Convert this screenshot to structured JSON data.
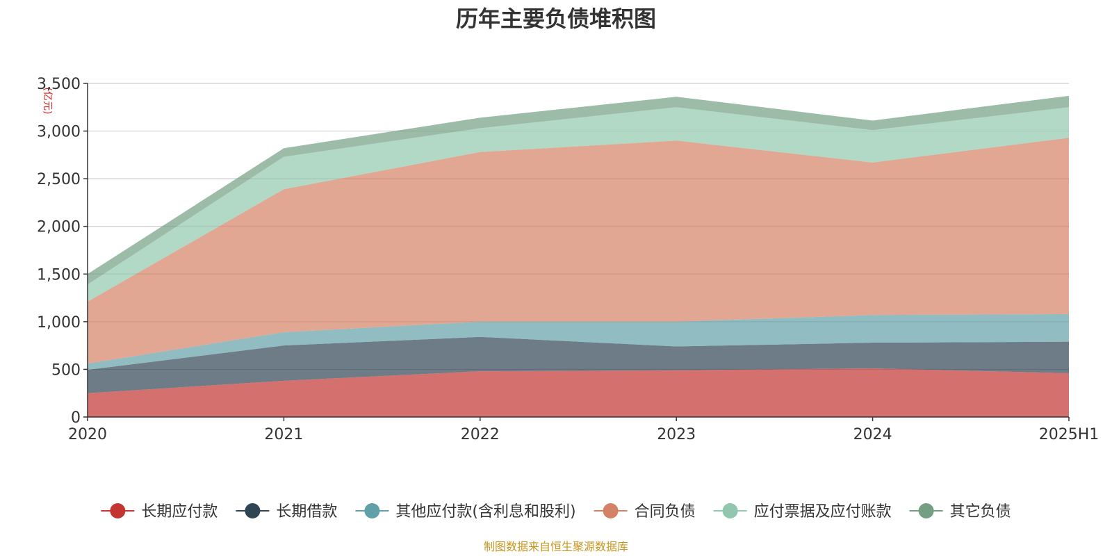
{
  "chart_data": {
    "type": "area",
    "stacked": true,
    "title": "历年主要负债堆积图",
    "unit": "(亿元)",
    "categories": [
      "2020",
      "2021",
      "2022",
      "2023",
      "2024",
      "2025H1"
    ],
    "ylim": [
      0,
      3500
    ],
    "yticks": [
      0,
      500,
      1000,
      1500,
      2000,
      2500,
      3000,
      3500
    ],
    "ytick_labels": [
      "0",
      "500",
      "1,000",
      "1,500",
      "2,000",
      "2,500",
      "3,000",
      "3,500"
    ],
    "grid": true,
    "legend_position": "bottom",
    "series": [
      {
        "name": "长期应付款",
        "values": [
          250,
          380,
          480,
          490,
          510,
          460
        ],
        "color": "#c23531",
        "opacity": 0.7
      },
      {
        "name": "长期借款",
        "values": [
          245,
          370,
          360,
          250,
          270,
          330
        ],
        "color": "#2f4554",
        "opacity": 0.7
      },
      {
        "name": "其他应付款(含利息和股利)",
        "values": [
          65,
          140,
          160,
          260,
          290,
          290
        ],
        "color": "#61a0a8",
        "opacity": 0.7
      },
      {
        "name": "合同负债",
        "values": [
          650,
          1500,
          1780,
          1900,
          1600,
          1850
        ],
        "color": "#d48265",
        "opacity": 0.7
      },
      {
        "name": "应付票据及应付账款",
        "values": [
          180,
          340,
          250,
          350,
          340,
          320
        ],
        "color": "#91c7ae",
        "opacity": 0.7
      },
      {
        "name": "其它负债",
        "values": [
          110,
          90,
          110,
          110,
          100,
          120
        ],
        "color": "#749f83",
        "opacity": 0.7
      }
    ]
  },
  "source_text": "制图数据来自恒生聚源数据库"
}
